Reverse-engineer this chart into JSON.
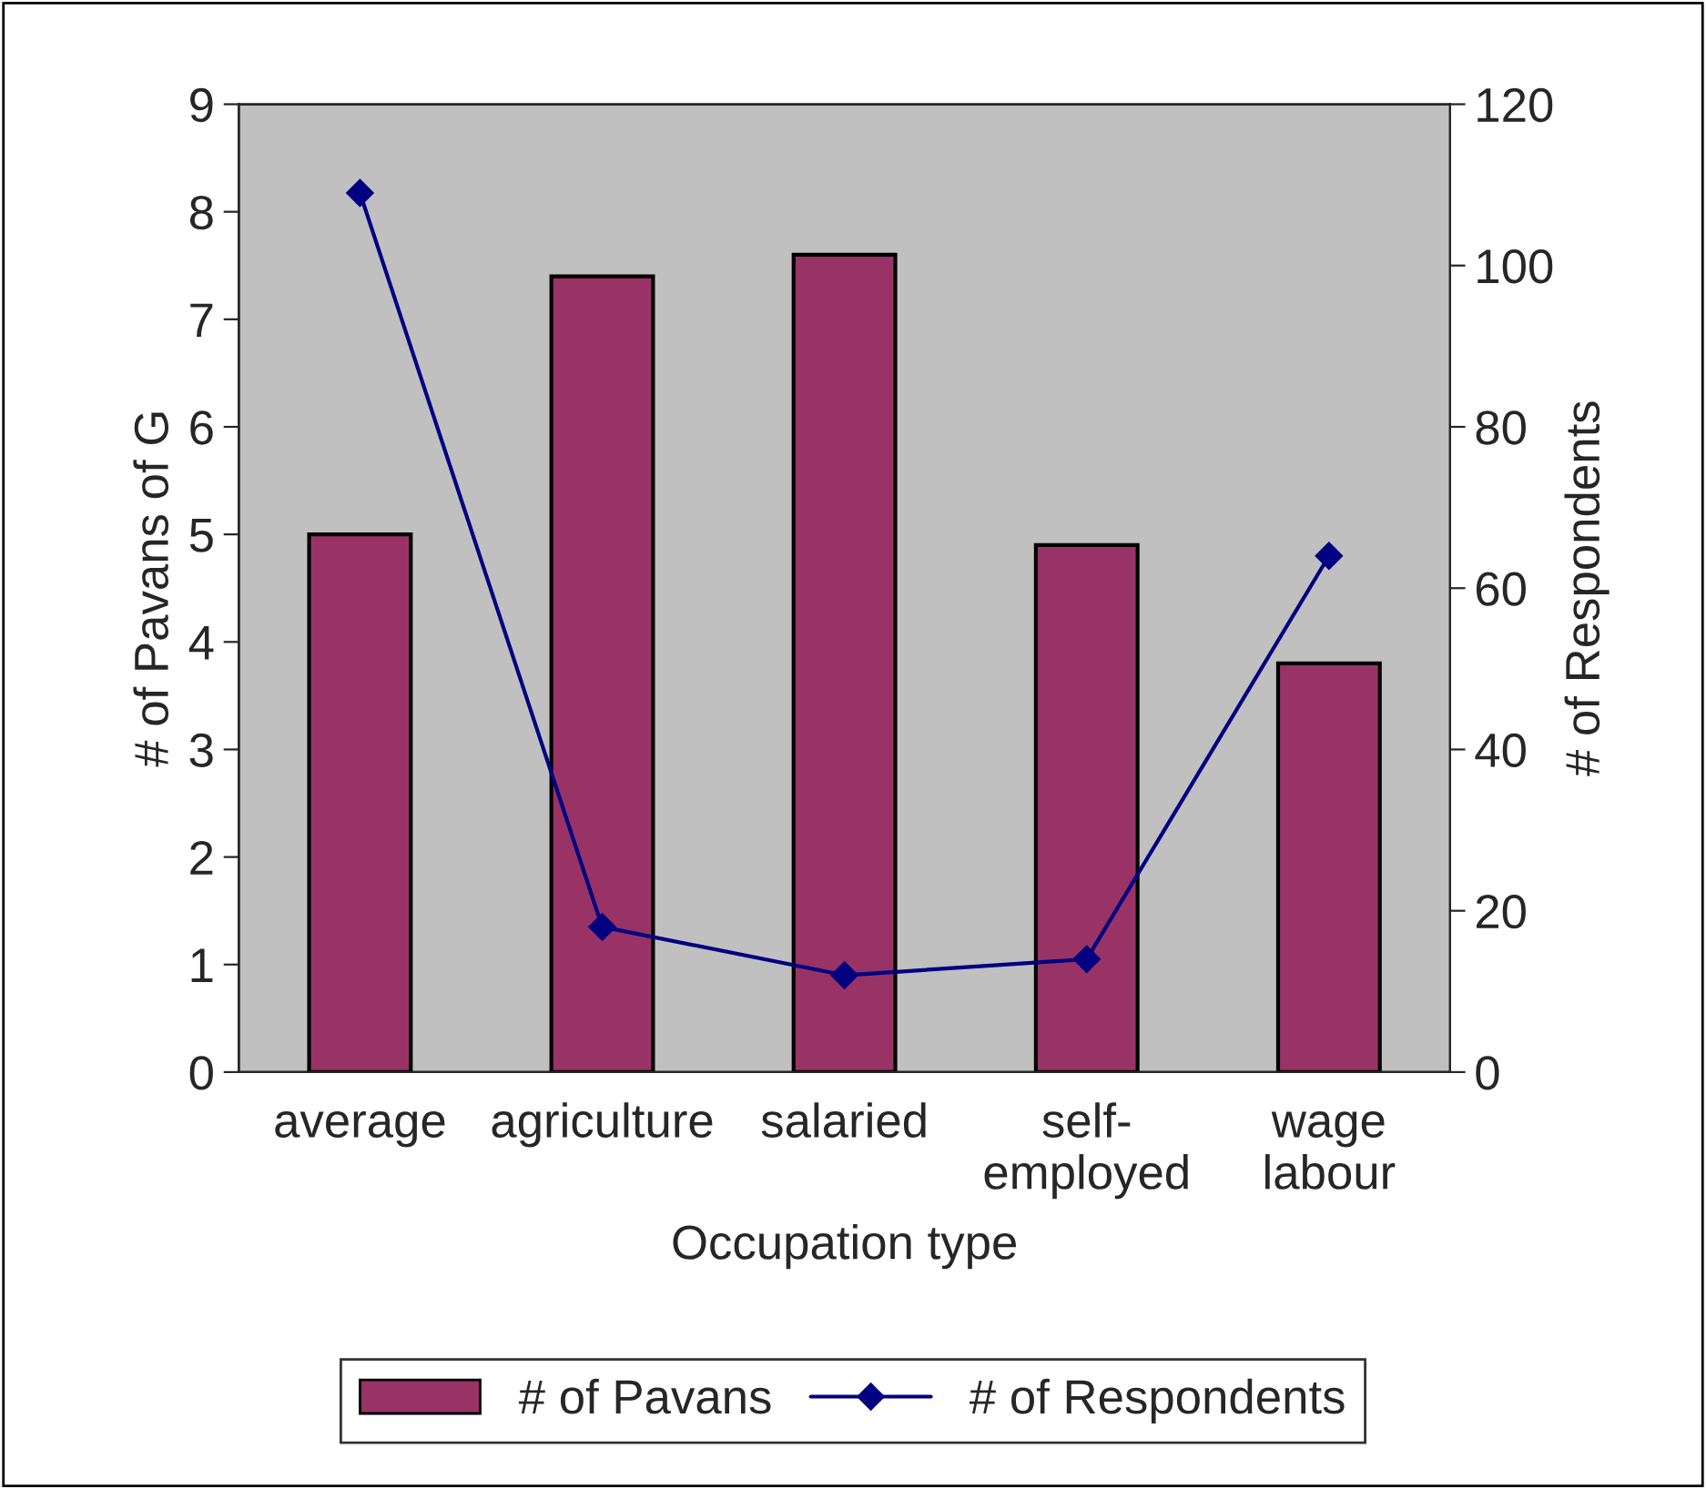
{
  "chart_data": {
    "type": "bar",
    "xlabel": "Occupation type",
    "ylabel": "# of Pavans of G",
    "y2label": "# of Respondents",
    "categories": [
      "average",
      "agriculture",
      "salaried",
      "self-\nemployed",
      "wage\nlabour"
    ],
    "series": [
      {
        "name": "# of Pavans",
        "color": "#993366",
        "values": [
          5.0,
          7.4,
          7.6,
          4.9,
          3.8
        ]
      },
      {
        "name": "# of Respondents",
        "type": "line",
        "axis": "y2",
        "color": "#000080",
        "marker": "diamond",
        "values": [
          109,
          18,
          12,
          14,
          64
        ]
      }
    ],
    "ylim": [
      0,
      9
    ],
    "yticks": [
      0,
      1,
      2,
      3,
      4,
      5,
      6,
      7,
      8,
      9
    ],
    "y2lim": [
      0,
      120
    ],
    "y2ticks": [
      0,
      20,
      40,
      60,
      80,
      100,
      120
    ],
    "grid": false,
    "legend": "bottom"
  }
}
